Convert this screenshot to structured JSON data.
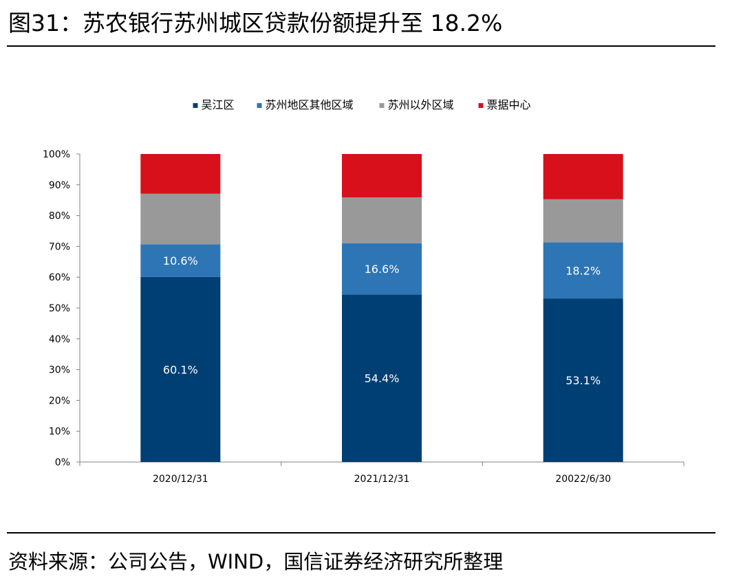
{
  "figure": {
    "title": "图31：苏农银行苏州城区贷款份额提升至 18.2%",
    "source": "资料来源：公司公告，WIND，国信证券经济研究所整理"
  },
  "chart_data": {
    "type": "bar",
    "stacked": true,
    "categories": [
      "2020/12/31",
      "2021/12/31",
      "20022/6/30"
    ],
    "series": [
      {
        "name": "吴江区",
        "color": "#003f73",
        "values": [
          60.1,
          54.4,
          53.1
        ],
        "labels": [
          "60.1%",
          "54.4%",
          "53.1%"
        ]
      },
      {
        "name": "苏州地区其他区域",
        "color": "#2e75b6",
        "values": [
          10.6,
          16.6,
          18.2
        ],
        "labels": [
          "10.6%",
          "16.6%",
          "18.2%"
        ]
      },
      {
        "name": "苏州以外区域",
        "color": "#999999",
        "values": [
          16.4,
          14.9,
          14.0
        ],
        "labels": [
          "",
          "",
          ""
        ]
      },
      {
        "name": "票据中心",
        "color": "#d7101c",
        "values": [
          12.9,
          14.1,
          14.7
        ],
        "labels": [
          "",
          "",
          ""
        ]
      }
    ],
    "ylim": [
      0,
      100
    ],
    "yticks": [
      "0%",
      "10%",
      "20%",
      "30%",
      "40%",
      "50%",
      "60%",
      "70%",
      "80%",
      "90%",
      "100%"
    ],
    "legend_position": "top-center",
    "grid": false
  }
}
